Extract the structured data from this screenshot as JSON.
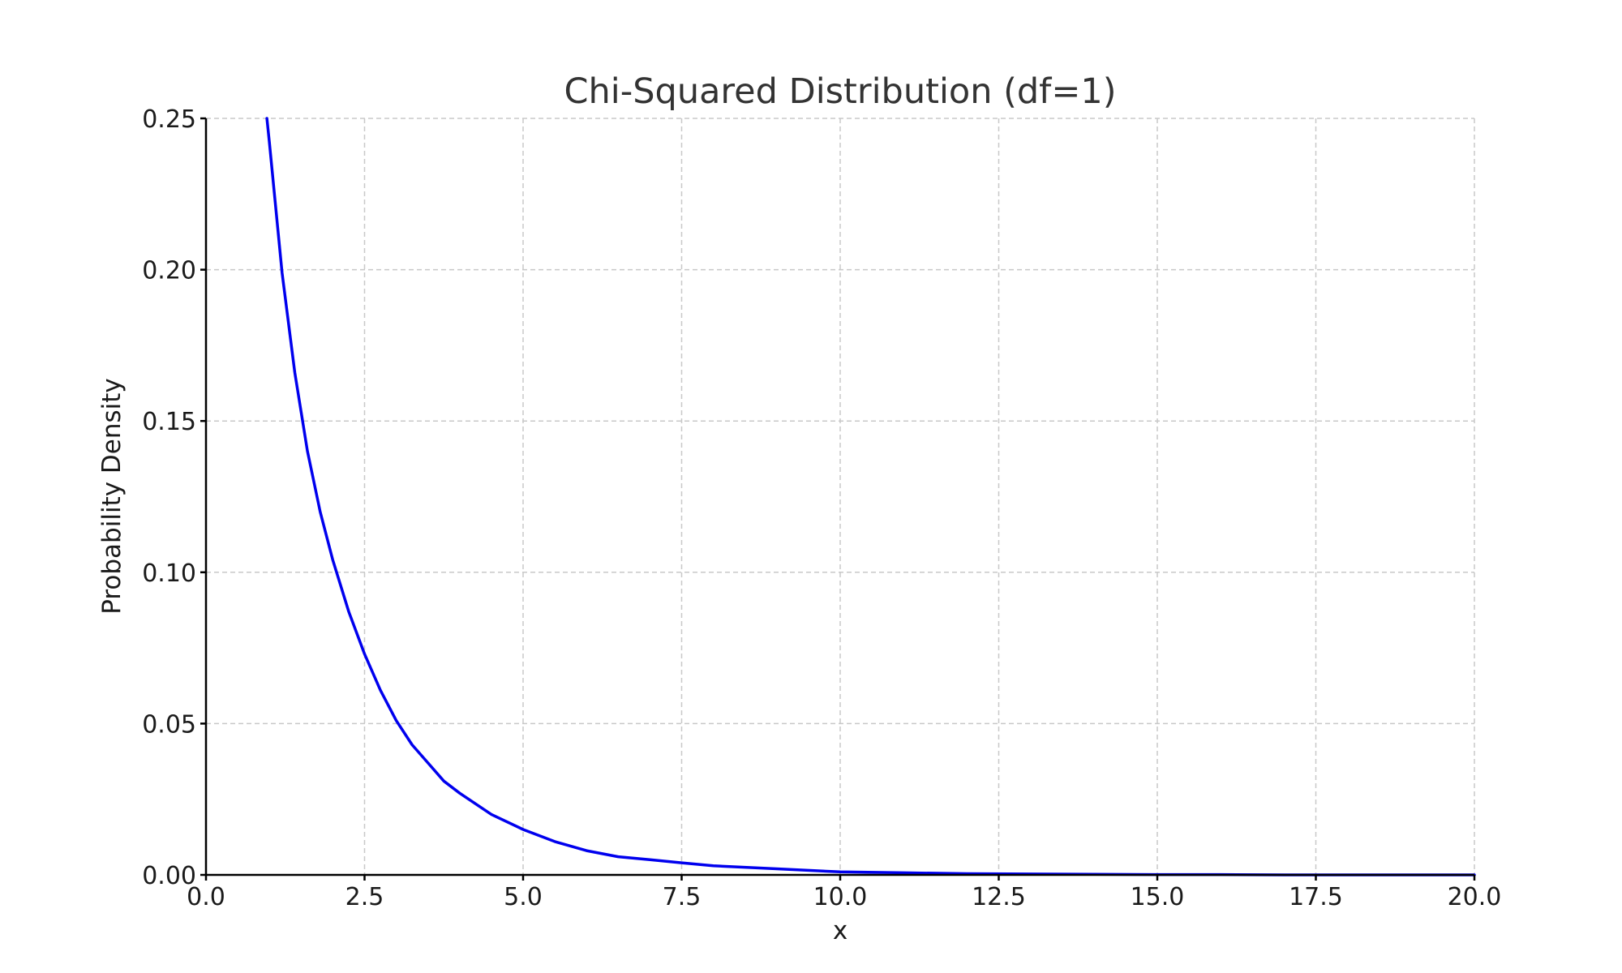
{
  "chart_data": {
    "type": "line",
    "title": "Chi-Squared Distribution (df=1)",
    "xlabel": "x",
    "ylabel": "Probability Density",
    "xlim": [
      0,
      20
    ],
    "ylim": [
      0,
      0.25
    ],
    "x_ticks": [
      "0.0",
      "2.5",
      "5.0",
      "7.5",
      "10.0",
      "12.5",
      "15.0",
      "17.5",
      "20.0"
    ],
    "y_ticks": [
      "0.00",
      "0.05",
      "0.10",
      "0.15",
      "0.20",
      "0.25"
    ],
    "grid": true,
    "series": [
      {
        "color": "#0000ee",
        "x": [
          0.96,
          1.0,
          1.2,
          1.4,
          1.6,
          1.8,
          2.0,
          2.25,
          2.5,
          2.75,
          3.0,
          3.25,
          3.5,
          3.75,
          4.0,
          4.5,
          5.0,
          5.5,
          6.0,
          6.5,
          7.0,
          7.5,
          8.0,
          9.0,
          10.0,
          11.0,
          12.0,
          13.0,
          14.0,
          15.0,
          16.0,
          17.0,
          18.0,
          19.0,
          20.0
        ],
        "values": [
          0.25,
          0.242,
          0.199,
          0.166,
          0.14,
          0.12,
          0.104,
          0.087,
          0.073,
          0.061,
          0.051,
          0.043,
          0.037,
          0.031,
          0.027,
          0.02,
          0.015,
          0.011,
          0.008,
          0.006,
          0.005,
          0.004,
          0.003,
          0.002,
          0.001,
          0.0007,
          0.0004,
          0.0003,
          0.0002,
          0.0001,
          0.0001,
          0.0,
          0.0,
          0.0,
          0.0
        ]
      }
    ]
  }
}
